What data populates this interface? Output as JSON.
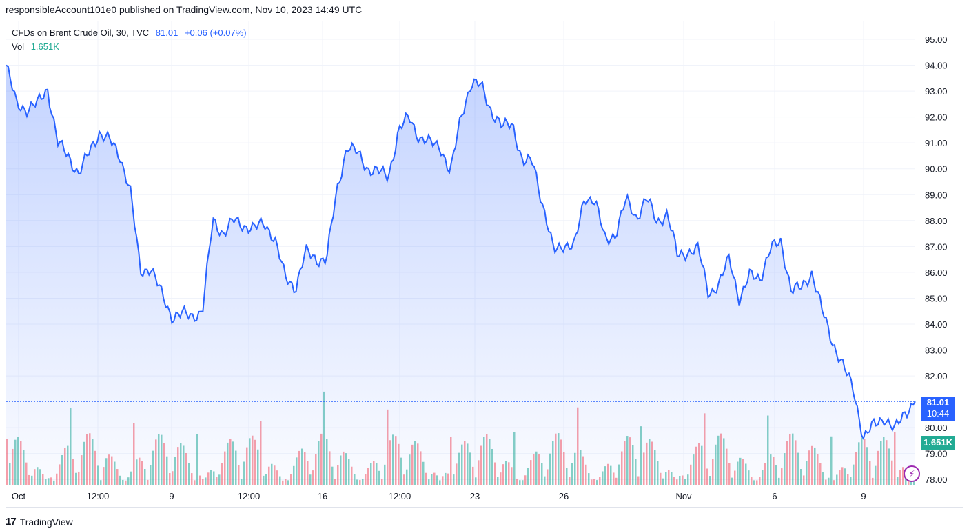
{
  "header": {
    "publisher_text": "responsibleAccount101e0 published on TradingView.com, Nov 10, 2023 14:49 UTC"
  },
  "legend": {
    "symbol": "CFDs on Brent Crude Oil, 30, TVC",
    "last": "81.01",
    "change": "+0.06 (+0.07%)",
    "vol_label": "Vol",
    "vol_value": "1.651K"
  },
  "tags": {
    "price": "81.01",
    "countdown": "10:44",
    "volume": "1.651K"
  },
  "footer": {
    "brand": "TradingView",
    "logo": "17"
  },
  "colors": {
    "line": "#2962ff",
    "up_vol": "#22ab94",
    "down_vol": "#f7525f",
    "grid": "#f0f3fa"
  },
  "chart_data": {
    "type": "area",
    "series": [
      {
        "values": [
          94.0,
          92.5,
          92.3,
          92.5,
          93.1,
          91.0,
          90.5,
          89.8,
          90.6,
          91.4,
          91.1,
          90.5,
          89.2,
          86.0,
          86.2,
          85.2,
          84.3,
          84.4,
          84.3,
          84.5,
          88.0,
          87.5,
          88.0,
          87.8,
          87.7,
          87.9,
          87.3,
          85.8,
          85.4,
          86.8,
          86.5,
          86.5,
          89.1,
          90.9,
          90.6,
          90.0,
          89.9,
          89.7,
          91.5,
          92.0,
          91.2,
          91.0,
          90.9,
          89.8,
          92.0,
          93.3,
          93.2,
          92.2,
          91.6,
          91.8,
          90.2,
          90.3,
          88.5,
          86.8,
          87.1,
          87.0,
          88.9,
          88.8,
          87.2,
          87.5,
          88.8,
          88.1,
          88.9,
          87.9,
          88.3,
          86.6,
          86.8,
          86.9,
          85.2,
          85.5,
          86.6,
          84.9,
          85.9,
          85.8,
          86.9,
          87.2,
          85.3,
          85.4,
          86.0,
          84.5,
          83.3,
          82.4,
          81.5,
          79.6,
          80.1,
          80.4,
          79.9,
          80.6,
          81.01
        ]
      }
    ],
    "x_ticks": [
      "Oct",
      "12:00",
      "9",
      "12:00",
      "16",
      "12:00",
      "23",
      "26",
      "Nov",
      "6",
      "9"
    ],
    "y_ticks": [
      "95.00",
      "94.00",
      "93.00",
      "92.00",
      "91.00",
      "90.00",
      "89.00",
      "88.00",
      "87.00",
      "86.00",
      "85.00",
      "84.00",
      "83.00",
      "82.00",
      "80.00",
      "79.00",
      "78.00"
    ],
    "ylim": [
      77.98,
      95.0
    ],
    "last_price": 81.01,
    "grid": true
  }
}
